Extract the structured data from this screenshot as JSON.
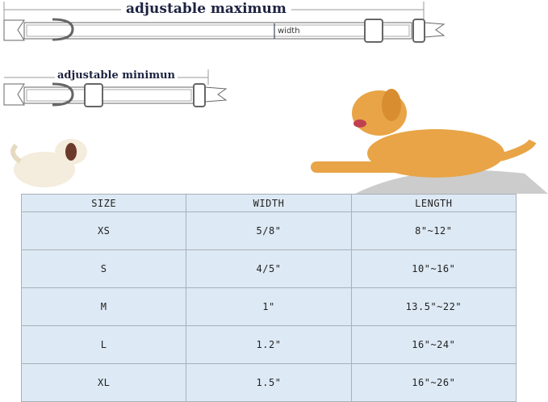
{
  "diagram": {
    "max_label": "adjustable maximum",
    "min_label": "adjustable minimun",
    "width_label": "width"
  },
  "table": {
    "headers": [
      "SIZE",
      "WIDTH",
      "LENGTH"
    ],
    "rows": [
      [
        "XS",
        "5/8\"",
        "8\"~12\""
      ],
      [
        "S",
        "4/5\"",
        "10\"~16\""
      ],
      [
        "M",
        "1\"",
        "13.5\"~22\""
      ],
      [
        "L",
        "1.2\"",
        "16\"~24\""
      ],
      [
        "XL",
        "1.5\"",
        "16\"~26\""
      ]
    ]
  },
  "colors": {
    "table_bg": "#dde9f4",
    "label": "#1d2340",
    "dog": "#e8a446"
  }
}
